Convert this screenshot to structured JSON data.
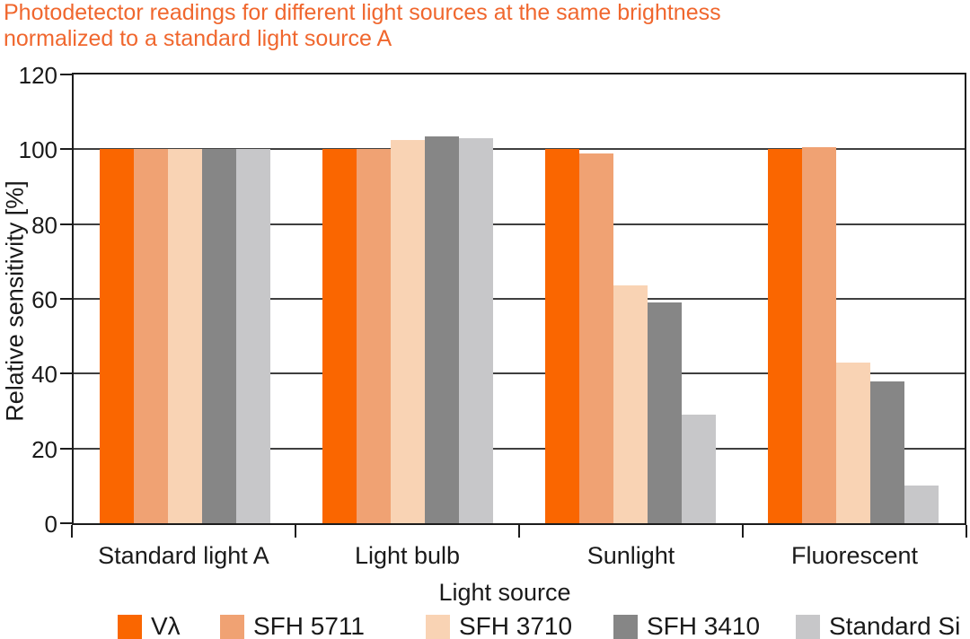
{
  "chart_data": {
    "type": "bar",
    "title": "Photodetector readings for different light sources at the same brightness\nnormalized to a standard light source A",
    "title_color": "#F0672E",
    "xlabel": "Light source",
    "ylabel": "Relative sensitivity [%]",
    "ylim": [
      0,
      120
    ],
    "yticks": [
      0,
      20,
      40,
      60,
      80,
      100,
      120
    ],
    "grid": true,
    "legend_position": "bottom",
    "categories": [
      "Standard light A",
      "Light bulb",
      "Sunlight",
      "Fluorescent"
    ],
    "series": [
      {
        "name": "Vλ",
        "color": "#FA6600",
        "values": [
          100,
          100,
          100,
          100
        ]
      },
      {
        "name": "SFH 5711",
        "color": "#F0A273",
        "values": [
          100,
          100,
          99,
          100.5
        ]
      },
      {
        "name": "SFH 3710",
        "color": "#F9D3B4",
        "values": [
          100,
          102.5,
          63.5,
          43
        ]
      },
      {
        "name": "SFH 3410",
        "color": "#868686",
        "values": [
          100,
          103.5,
          59,
          38
        ]
      },
      {
        "name": "Standard Si",
        "color": "#C7C7C9",
        "values": [
          100,
          103,
          29,
          10
        ]
      }
    ]
  }
}
